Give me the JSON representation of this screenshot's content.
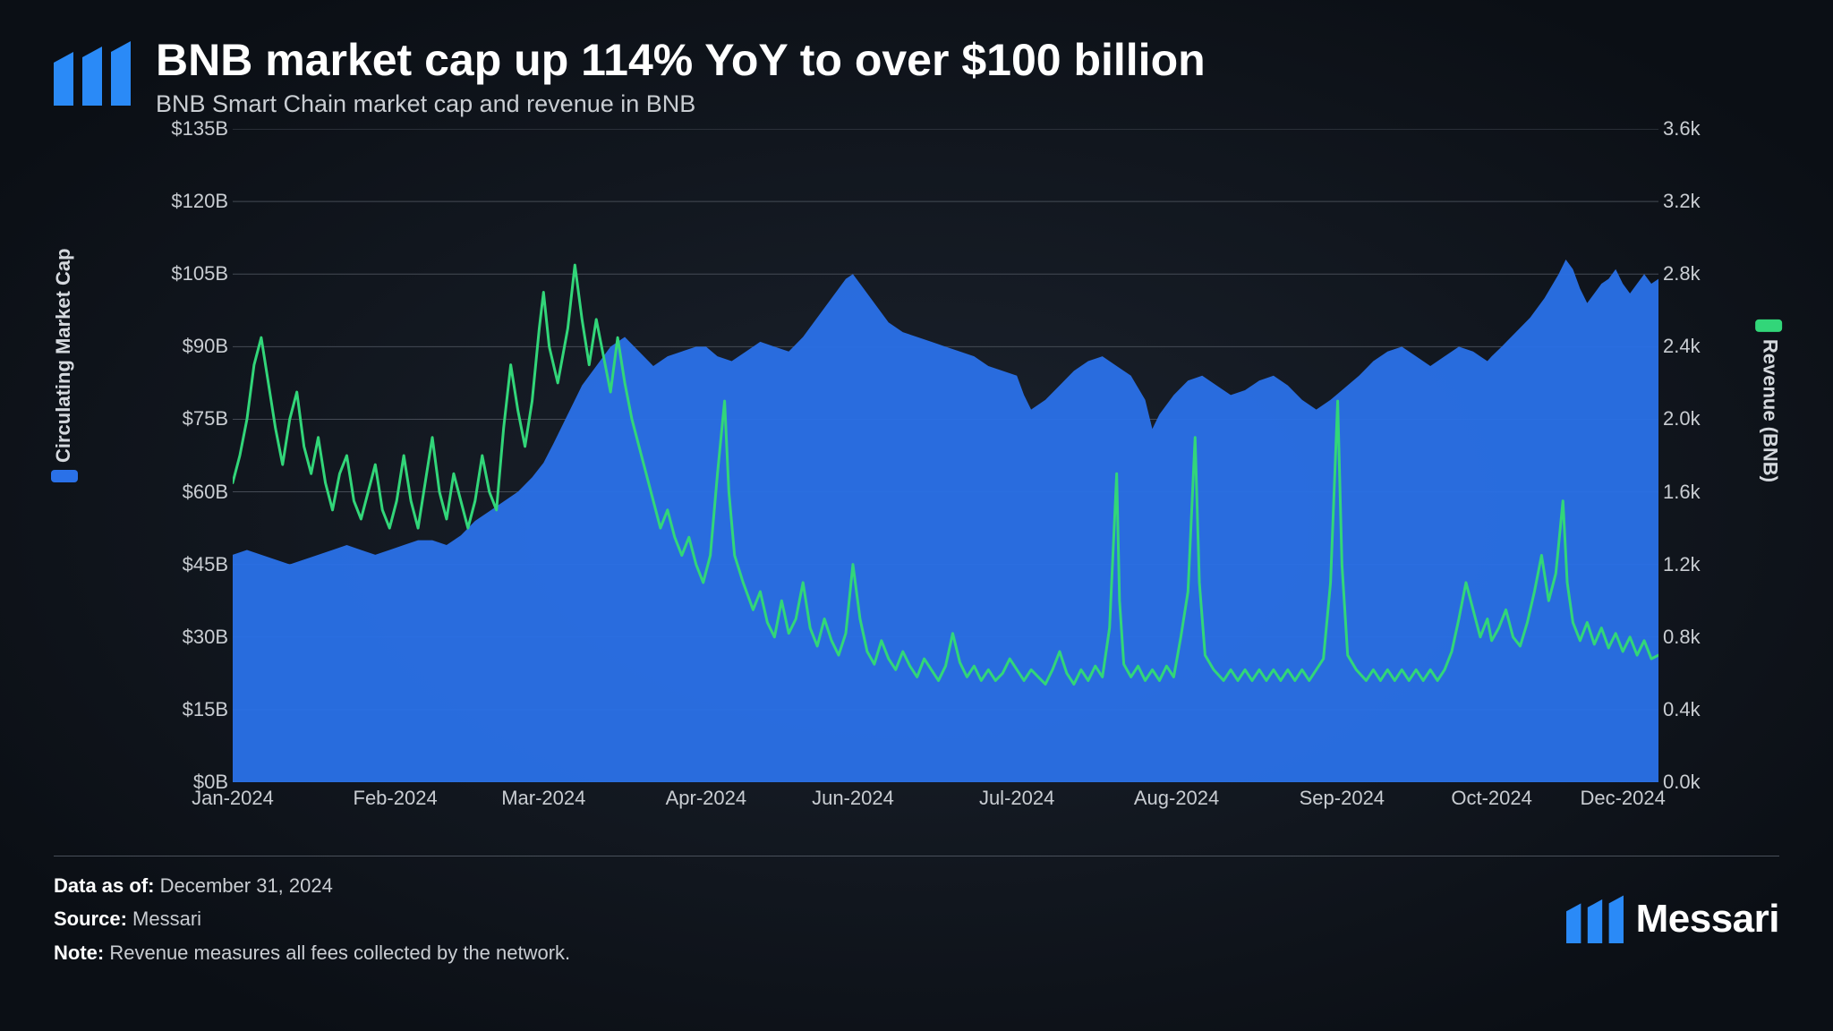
{
  "header": {
    "title": "BNB market cap up 114% YoY to over $100 billion",
    "subtitle": "BNB Smart Chain market cap and revenue in BNB"
  },
  "brand": {
    "name": "Messari",
    "logo_color": "#2a8af7"
  },
  "footer": {
    "data_as_of_label": "Data as of:",
    "data_as_of_value": "December 31, 2024",
    "source_label": "Source:",
    "source_value": "Messari",
    "note_label": "Note:",
    "note_value": "Revenue measures all fees collected by the network."
  },
  "chart": {
    "type": "dual-axis area + line",
    "background_color": "transparent",
    "grid_color": "#454b55",
    "grid_stroke_width": 1,
    "x_axis": {
      "ticks": [
        {
          "label": "Jan-2024",
          "pos": 0.0
        },
        {
          "label": "Feb-2024",
          "pos": 0.114
        },
        {
          "label": "Mar-2024",
          "pos": 0.218
        },
        {
          "label": "Apr-2024",
          "pos": 0.332
        },
        {
          "label": "Jun-2024",
          "pos": 0.435
        },
        {
          "label": "Jul-2024",
          "pos": 0.55
        },
        {
          "label": "Aug-2024",
          "pos": 0.662
        },
        {
          "label": "Sep-2024",
          "pos": 0.778
        },
        {
          "label": "Oct-2024",
          "pos": 0.883
        },
        {
          "label": "Dec-2024",
          "pos": 0.975
        }
      ]
    },
    "y_left": {
      "label": "Circulating Market Cap",
      "min": 0,
      "max": 135,
      "unit_prefix": "$",
      "unit_suffix": "B",
      "ticks": [
        0,
        15,
        30,
        45,
        60,
        75,
        90,
        105,
        120,
        135
      ],
      "legend_color": "#2a71e8"
    },
    "y_right": {
      "label": "Revenue (BNB)",
      "min": 0,
      "max": 3.6,
      "unit_suffix": "k",
      "ticks": [
        0.0,
        0.4,
        0.8,
        1.2,
        1.6,
        2.0,
        2.4,
        2.8,
        3.2,
        3.6
      ],
      "legend_color": "#32d679"
    },
    "series_marketcap": {
      "type": "area",
      "fill_color": "#2a71e8",
      "fill_opacity": 0.95,
      "stroke": "none",
      "data": [
        [
          0.0,
          47
        ],
        [
          0.01,
          48
        ],
        [
          0.02,
          47
        ],
        [
          0.03,
          46
        ],
        [
          0.04,
          45
        ],
        [
          0.05,
          46
        ],
        [
          0.06,
          47
        ],
        [
          0.07,
          48
        ],
        [
          0.08,
          49
        ],
        [
          0.09,
          48
        ],
        [
          0.1,
          47
        ],
        [
          0.11,
          48
        ],
        [
          0.12,
          49
        ],
        [
          0.13,
          50
        ],
        [
          0.14,
          50
        ],
        [
          0.15,
          49
        ],
        [
          0.16,
          51
        ],
        [
          0.17,
          54
        ],
        [
          0.18,
          56
        ],
        [
          0.19,
          58
        ],
        [
          0.2,
          60
        ],
        [
          0.21,
          63
        ],
        [
          0.218,
          66
        ],
        [
          0.225,
          70
        ],
        [
          0.235,
          76
        ],
        [
          0.245,
          82
        ],
        [
          0.255,
          86
        ],
        [
          0.265,
          90
        ],
        [
          0.275,
          92
        ],
        [
          0.285,
          89
        ],
        [
          0.295,
          86
        ],
        [
          0.305,
          88
        ],
        [
          0.315,
          89
        ],
        [
          0.325,
          90
        ],
        [
          0.332,
          90
        ],
        [
          0.34,
          88
        ],
        [
          0.35,
          87
        ],
        [
          0.36,
          89
        ],
        [
          0.37,
          91
        ],
        [
          0.38,
          90
        ],
        [
          0.39,
          89
        ],
        [
          0.4,
          92
        ],
        [
          0.41,
          96
        ],
        [
          0.42,
          100
        ],
        [
          0.43,
          104
        ],
        [
          0.435,
          105
        ],
        [
          0.44,
          103
        ],
        [
          0.45,
          99
        ],
        [
          0.46,
          95
        ],
        [
          0.47,
          93
        ],
        [
          0.48,
          92
        ],
        [
          0.49,
          91
        ],
        [
          0.5,
          90
        ],
        [
          0.51,
          89
        ],
        [
          0.52,
          88
        ],
        [
          0.53,
          86
        ],
        [
          0.54,
          85
        ],
        [
          0.55,
          84
        ],
        [
          0.555,
          80
        ],
        [
          0.56,
          77
        ],
        [
          0.57,
          79
        ],
        [
          0.58,
          82
        ],
        [
          0.59,
          85
        ],
        [
          0.6,
          87
        ],
        [
          0.61,
          88
        ],
        [
          0.62,
          86
        ],
        [
          0.63,
          84
        ],
        [
          0.64,
          79
        ],
        [
          0.645,
          73
        ],
        [
          0.65,
          76
        ],
        [
          0.66,
          80
        ],
        [
          0.67,
          83
        ],
        [
          0.68,
          84
        ],
        [
          0.69,
          82
        ],
        [
          0.7,
          80
        ],
        [
          0.71,
          81
        ],
        [
          0.72,
          83
        ],
        [
          0.73,
          84
        ],
        [
          0.74,
          82
        ],
        [
          0.75,
          79
        ],
        [
          0.76,
          77
        ],
        [
          0.77,
          79
        ],
        [
          0.778,
          81
        ],
        [
          0.79,
          84
        ],
        [
          0.8,
          87
        ],
        [
          0.81,
          89
        ],
        [
          0.82,
          90
        ],
        [
          0.83,
          88
        ],
        [
          0.84,
          86
        ],
        [
          0.85,
          88
        ],
        [
          0.86,
          90
        ],
        [
          0.87,
          89
        ],
        [
          0.88,
          87
        ],
        [
          0.883,
          88
        ],
        [
          0.89,
          90
        ],
        [
          0.9,
          93
        ],
        [
          0.91,
          96
        ],
        [
          0.92,
          100
        ],
        [
          0.93,
          105
        ],
        [
          0.935,
          108
        ],
        [
          0.94,
          106
        ],
        [
          0.945,
          102
        ],
        [
          0.95,
          99
        ],
        [
          0.955,
          101
        ],
        [
          0.96,
          103
        ],
        [
          0.965,
          104
        ],
        [
          0.97,
          106
        ],
        [
          0.975,
          103
        ],
        [
          0.98,
          101
        ],
        [
          0.985,
          103
        ],
        [
          0.99,
          105
        ],
        [
          0.995,
          103
        ],
        [
          1.0,
          104
        ]
      ]
    },
    "series_revenue": {
      "type": "line",
      "stroke_color": "#32d679",
      "stroke_width": 3,
      "fill": "none",
      "data": [
        [
          0.0,
          1.65
        ],
        [
          0.005,
          1.8
        ],
        [
          0.01,
          2.0
        ],
        [
          0.015,
          2.3
        ],
        [
          0.02,
          2.45
        ],
        [
          0.025,
          2.2
        ],
        [
          0.03,
          1.95
        ],
        [
          0.035,
          1.75
        ],
        [
          0.04,
          2.0
        ],
        [
          0.045,
          2.15
        ],
        [
          0.05,
          1.85
        ],
        [
          0.055,
          1.7
        ],
        [
          0.06,
          1.9
        ],
        [
          0.065,
          1.65
        ],
        [
          0.07,
          1.5
        ],
        [
          0.075,
          1.7
        ],
        [
          0.08,
          1.8
        ],
        [
          0.085,
          1.55
        ],
        [
          0.09,
          1.45
        ],
        [
          0.095,
          1.6
        ],
        [
          0.1,
          1.75
        ],
        [
          0.105,
          1.5
        ],
        [
          0.11,
          1.4
        ],
        [
          0.115,
          1.55
        ],
        [
          0.12,
          1.8
        ],
        [
          0.125,
          1.55
        ],
        [
          0.13,
          1.4
        ],
        [
          0.135,
          1.65
        ],
        [
          0.14,
          1.9
        ],
        [
          0.145,
          1.6
        ],
        [
          0.15,
          1.45
        ],
        [
          0.155,
          1.7
        ],
        [
          0.16,
          1.55
        ],
        [
          0.165,
          1.4
        ],
        [
          0.17,
          1.55
        ],
        [
          0.175,
          1.8
        ],
        [
          0.18,
          1.6
        ],
        [
          0.185,
          1.5
        ],
        [
          0.19,
          1.95
        ],
        [
          0.195,
          2.3
        ],
        [
          0.2,
          2.05
        ],
        [
          0.205,
          1.85
        ],
        [
          0.21,
          2.1
        ],
        [
          0.215,
          2.5
        ],
        [
          0.218,
          2.7
        ],
        [
          0.222,
          2.4
        ],
        [
          0.228,
          2.2
        ],
        [
          0.235,
          2.5
        ],
        [
          0.24,
          2.85
        ],
        [
          0.245,
          2.55
        ],
        [
          0.25,
          2.3
        ],
        [
          0.255,
          2.55
        ],
        [
          0.26,
          2.35
        ],
        [
          0.265,
          2.15
        ],
        [
          0.27,
          2.45
        ],
        [
          0.275,
          2.2
        ],
        [
          0.28,
          2.0
        ],
        [
          0.285,
          1.85
        ],
        [
          0.29,
          1.7
        ],
        [
          0.295,
          1.55
        ],
        [
          0.3,
          1.4
        ],
        [
          0.305,
          1.5
        ],
        [
          0.31,
          1.35
        ],
        [
          0.315,
          1.25
        ],
        [
          0.32,
          1.35
        ],
        [
          0.325,
          1.2
        ],
        [
          0.33,
          1.1
        ],
        [
          0.335,
          1.25
        ],
        [
          0.34,
          1.7
        ],
        [
          0.345,
          2.1
        ],
        [
          0.348,
          1.6
        ],
        [
          0.352,
          1.25
        ],
        [
          0.358,
          1.1
        ],
        [
          0.365,
          0.95
        ],
        [
          0.37,
          1.05
        ],
        [
          0.375,
          0.88
        ],
        [
          0.38,
          0.8
        ],
        [
          0.385,
          1.0
        ],
        [
          0.39,
          0.82
        ],
        [
          0.395,
          0.9
        ],
        [
          0.4,
          1.1
        ],
        [
          0.405,
          0.85
        ],
        [
          0.41,
          0.75
        ],
        [
          0.415,
          0.9
        ],
        [
          0.42,
          0.78
        ],
        [
          0.425,
          0.7
        ],
        [
          0.43,
          0.82
        ],
        [
          0.435,
          1.2
        ],
        [
          0.44,
          0.9
        ],
        [
          0.445,
          0.72
        ],
        [
          0.45,
          0.65
        ],
        [
          0.455,
          0.78
        ],
        [
          0.46,
          0.68
        ],
        [
          0.465,
          0.62
        ],
        [
          0.47,
          0.72
        ],
        [
          0.475,
          0.64
        ],
        [
          0.48,
          0.58
        ],
        [
          0.485,
          0.68
        ],
        [
          0.49,
          0.62
        ],
        [
          0.495,
          0.56
        ],
        [
          0.5,
          0.64
        ],
        [
          0.505,
          0.82
        ],
        [
          0.51,
          0.66
        ],
        [
          0.515,
          0.58
        ],
        [
          0.52,
          0.64
        ],
        [
          0.525,
          0.56
        ],
        [
          0.53,
          0.62
        ],
        [
          0.535,
          0.56
        ],
        [
          0.54,
          0.6
        ],
        [
          0.545,
          0.68
        ],
        [
          0.55,
          0.62
        ],
        [
          0.555,
          0.56
        ],
        [
          0.56,
          0.62
        ],
        [
          0.565,
          0.58
        ],
        [
          0.57,
          0.54
        ],
        [
          0.575,
          0.62
        ],
        [
          0.58,
          0.72
        ],
        [
          0.585,
          0.6
        ],
        [
          0.59,
          0.54
        ],
        [
          0.595,
          0.62
        ],
        [
          0.6,
          0.56
        ],
        [
          0.605,
          0.64
        ],
        [
          0.61,
          0.58
        ],
        [
          0.615,
          0.85
        ],
        [
          0.62,
          1.7
        ],
        [
          0.622,
          1.0
        ],
        [
          0.625,
          0.65
        ],
        [
          0.63,
          0.58
        ],
        [
          0.635,
          0.64
        ],
        [
          0.64,
          0.56
        ],
        [
          0.645,
          0.62
        ],
        [
          0.65,
          0.56
        ],
        [
          0.655,
          0.64
        ],
        [
          0.66,
          0.58
        ],
        [
          0.665,
          0.8
        ],
        [
          0.67,
          1.05
        ],
        [
          0.675,
          1.9
        ],
        [
          0.678,
          1.1
        ],
        [
          0.682,
          0.7
        ],
        [
          0.688,
          0.62
        ],
        [
          0.695,
          0.56
        ],
        [
          0.7,
          0.62
        ],
        [
          0.705,
          0.56
        ],
        [
          0.71,
          0.62
        ],
        [
          0.715,
          0.56
        ],
        [
          0.72,
          0.62
        ],
        [
          0.725,
          0.56
        ],
        [
          0.73,
          0.62
        ],
        [
          0.735,
          0.56
        ],
        [
          0.74,
          0.62
        ],
        [
          0.745,
          0.56
        ],
        [
          0.75,
          0.62
        ],
        [
          0.755,
          0.56
        ],
        [
          0.76,
          0.62
        ],
        [
          0.765,
          0.68
        ],
        [
          0.77,
          1.1
        ],
        [
          0.775,
          2.1
        ],
        [
          0.778,
          1.2
        ],
        [
          0.782,
          0.7
        ],
        [
          0.788,
          0.62
        ],
        [
          0.795,
          0.56
        ],
        [
          0.8,
          0.62
        ],
        [
          0.805,
          0.56
        ],
        [
          0.81,
          0.62
        ],
        [
          0.815,
          0.56
        ],
        [
          0.82,
          0.62
        ],
        [
          0.825,
          0.56
        ],
        [
          0.83,
          0.62
        ],
        [
          0.835,
          0.56
        ],
        [
          0.84,
          0.62
        ],
        [
          0.845,
          0.56
        ],
        [
          0.85,
          0.62
        ],
        [
          0.855,
          0.72
        ],
        [
          0.86,
          0.9
        ],
        [
          0.865,
          1.1
        ],
        [
          0.87,
          0.95
        ],
        [
          0.875,
          0.8
        ],
        [
          0.88,
          0.9
        ],
        [
          0.883,
          0.78
        ],
        [
          0.888,
          0.85
        ],
        [
          0.893,
          0.95
        ],
        [
          0.898,
          0.8
        ],
        [
          0.903,
          0.75
        ],
        [
          0.908,
          0.88
        ],
        [
          0.913,
          1.05
        ],
        [
          0.918,
          1.25
        ],
        [
          0.923,
          1.0
        ],
        [
          0.928,
          1.15
        ],
        [
          0.933,
          1.55
        ],
        [
          0.936,
          1.1
        ],
        [
          0.94,
          0.88
        ],
        [
          0.945,
          0.78
        ],
        [
          0.95,
          0.88
        ],
        [
          0.955,
          0.76
        ],
        [
          0.96,
          0.85
        ],
        [
          0.965,
          0.74
        ],
        [
          0.97,
          0.82
        ],
        [
          0.975,
          0.72
        ],
        [
          0.98,
          0.8
        ],
        [
          0.985,
          0.7
        ],
        [
          0.99,
          0.78
        ],
        [
          0.995,
          0.68
        ],
        [
          1.0,
          0.7
        ]
      ]
    }
  }
}
